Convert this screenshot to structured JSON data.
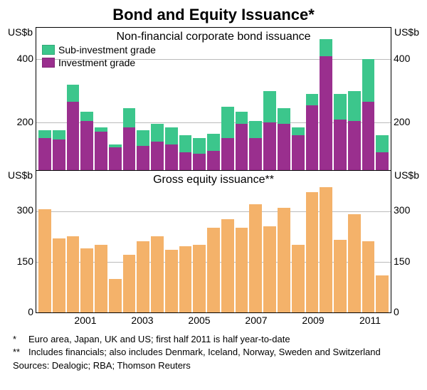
{
  "title": "Bond and Equity Issuance*",
  "panels": {
    "top": {
      "subtitle": "Non-financial corporate bond issuance",
      "y_unit": "US$b",
      "ylim": [
        50,
        500
      ],
      "yticks": [
        200,
        400
      ],
      "type": "stacked-bar",
      "legend": [
        {
          "label": "Sub-investment grade",
          "color": "#3cc68c"
        },
        {
          "label": "Investment grade",
          "color": "#9a2f8e"
        }
      ],
      "series": {
        "investment": [
          150,
          145,
          265,
          205,
          170,
          120,
          185,
          125,
          140,
          130,
          105,
          100,
          110,
          150,
          195,
          150,
          200,
          195,
          160,
          255,
          410,
          210,
          205,
          265,
          105
        ],
        "sub": [
          25,
          30,
          55,
          30,
          15,
          10,
          60,
          50,
          55,
          55,
          55,
          50,
          55,
          100,
          40,
          55,
          100,
          50,
          25,
          35,
          55,
          80,
          95,
          135,
          55
        ]
      }
    },
    "bottom": {
      "subtitle": "Gross equity issuance**",
      "y_unit": "US$b",
      "ylim": [
        0,
        420
      ],
      "yticks": [
        0,
        150,
        300
      ],
      "type": "bar",
      "bar_color": "#f4b26a",
      "series": {
        "equity": [
          305,
          220,
          225,
          190,
          200,
          100,
          170,
          210,
          225,
          185,
          195,
          200,
          250,
          275,
          250,
          320,
          255,
          310,
          200,
          355,
          370,
          215,
          290,
          210,
          110
        ]
      }
    }
  },
  "x": {
    "n_bars": 25,
    "tick_labels": [
      "2001",
      "2003",
      "2005",
      "2007",
      "2009",
      "2011"
    ],
    "tick_positions_bar_index": [
      3,
      7,
      11,
      15,
      19,
      23
    ]
  },
  "colors": {
    "grid": "#bbbbbb",
    "border": "#000000",
    "background": "#ffffff"
  },
  "footnotes": [
    {
      "mark": "*",
      "text": "Euro area, Japan, UK and US; first half 2011 is half year-to-date"
    },
    {
      "mark": "**",
      "text": "Includes financials; also includes Denmark, Iceland, Norway, Sweden and Switzerland"
    }
  ],
  "sources": "Sources: Dealogic; RBA; Thomson Reuters"
}
